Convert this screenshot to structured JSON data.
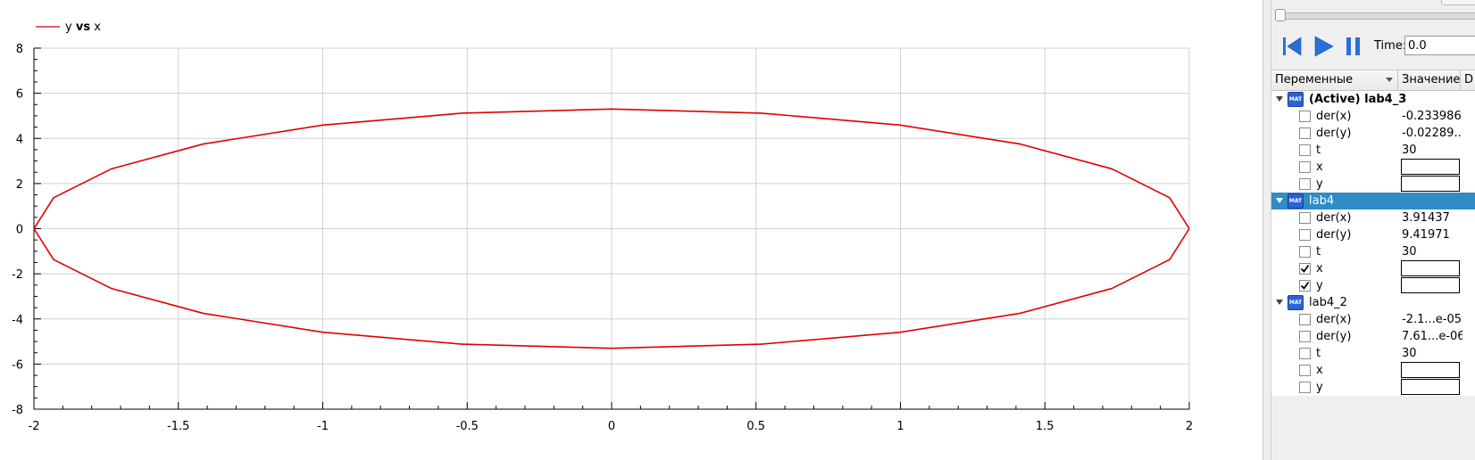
{
  "plot": {
    "legend": {
      "label_y": "y",
      "label_vs": "vs",
      "label_x": "x",
      "line_color": "#e00000"
    }
  },
  "chart_data": {
    "type": "line",
    "title": "",
    "xlabel": "",
    "ylabel": "",
    "xlim": [
      -2,
      2
    ],
    "ylim": [
      -8,
      8
    ],
    "grid": true,
    "legend_position": "top-left",
    "x_ticks": [
      -2,
      -1.5,
      -1,
      -0.5,
      0,
      0.5,
      1,
      1.5,
      2
    ],
    "x_tick_labels": [
      "-2",
      "-1.5",
      "-1",
      "-0.5",
      "0",
      "0.5",
      "1",
      "1.5",
      "2"
    ],
    "y_ticks": [
      -8,
      -6,
      -4,
      -2,
      0,
      2,
      4,
      6,
      8
    ],
    "y_tick_labels": [
      "-8",
      "-6",
      "-4",
      "-2",
      "0",
      "2",
      "4",
      "6",
      "8"
    ],
    "series": [
      {
        "name": "y vs x",
        "color": "#e00000",
        "x": [
          2.0,
          1.9319,
          1.7321,
          1.4142,
          1.0,
          0.5176,
          0.0,
          -0.5176,
          -1.0,
          -1.4142,
          -1.7321,
          -1.9319,
          -2.0,
          -1.9319,
          -1.7321,
          -1.4142,
          -1.0,
          -0.5176,
          0.0,
          0.5176,
          1.0,
          1.4142,
          1.7321,
          1.9319,
          2.0
        ],
        "y": [
          0.0,
          1.37,
          2.65,
          3.75,
          4.59,
          5.12,
          5.3,
          5.12,
          4.59,
          3.75,
          2.65,
          1.37,
          0.0,
          -1.37,
          -2.65,
          -3.75,
          -4.59,
          -5.12,
          -5.3,
          -5.12,
          -4.59,
          -3.75,
          -2.65,
          -1.37,
          0.0
        ]
      }
    ]
  },
  "controls": {
    "time_label": "Time:",
    "time_value": "0.0"
  },
  "tree": {
    "header": {
      "variables": "Переменные",
      "value": "Значение",
      "third": "D"
    },
    "models": [
      {
        "name": "(Active) lab4_3",
        "bold": true,
        "selected": false,
        "icon_text": "MAT",
        "vars": [
          {
            "name": "der(x)",
            "value": "-0.233986",
            "checked": false,
            "editable": false
          },
          {
            "name": "der(y)",
            "value": "-0.02289...",
            "checked": false,
            "editable": false
          },
          {
            "name": "t",
            "value": "30",
            "checked": false,
            "editable": false
          },
          {
            "name": "x",
            "value": "",
            "checked": false,
            "editable": true
          },
          {
            "name": "y",
            "value": "",
            "checked": false,
            "editable": true
          }
        ]
      },
      {
        "name": "lab4",
        "bold": false,
        "selected": true,
        "icon_text": "MAT",
        "vars": [
          {
            "name": "der(x)",
            "value": "3.91437",
            "checked": false,
            "editable": false
          },
          {
            "name": "der(y)",
            "value": "9.41971",
            "checked": false,
            "editable": false
          },
          {
            "name": "t",
            "value": "30",
            "checked": false,
            "editable": false
          },
          {
            "name": "x",
            "value": "",
            "checked": true,
            "editable": true
          },
          {
            "name": "y",
            "value": "",
            "checked": true,
            "editable": true
          }
        ]
      },
      {
        "name": "lab4_2",
        "bold": false,
        "selected": false,
        "icon_text": "MAT",
        "vars": [
          {
            "name": "der(x)",
            "value": "-2.1...e-05",
            "checked": false,
            "editable": false
          },
          {
            "name": "der(y)",
            "value": "7.61...e-06",
            "checked": false,
            "editable": false
          },
          {
            "name": "t",
            "value": "30",
            "checked": false,
            "editable": false
          },
          {
            "name": "x",
            "value": "",
            "checked": false,
            "editable": true
          },
          {
            "name": "y",
            "value": "",
            "checked": false,
            "editable": true
          }
        ]
      }
    ]
  }
}
